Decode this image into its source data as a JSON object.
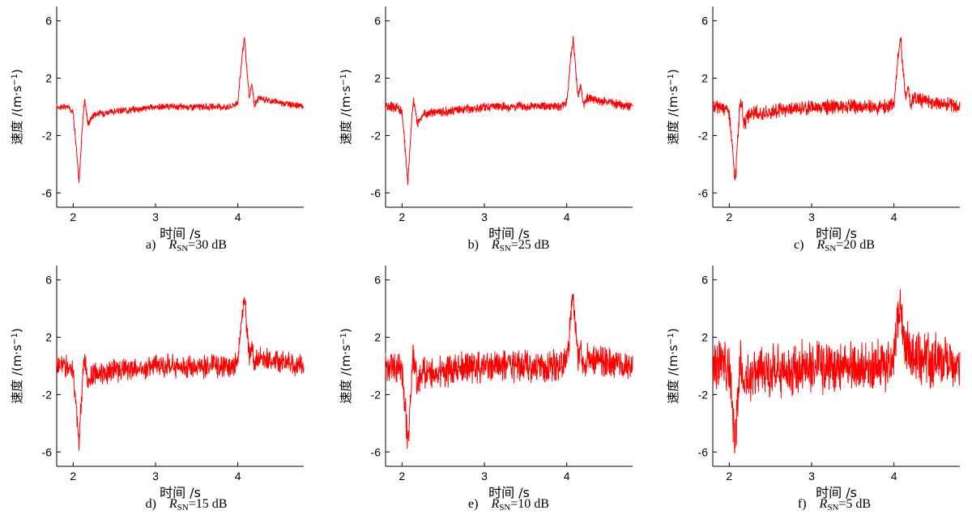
{
  "chart_data": [
    {
      "type": "line",
      "panel": "a)",
      "snr_label": "R",
      "snr_sub": "SN",
      "snr_value": "=30 dB",
      "noise": 0.25,
      "xlabel": "时间 /s",
      "ylabel": "速度 /(m·s",
      "ylabel_sup": "−1",
      "ylabel_close": ")",
      "xlim": [
        1.8,
        4.8
      ],
      "ylim": [
        -7,
        7
      ],
      "xticks": [
        2,
        3,
        4
      ],
      "yticks": [
        -6,
        -2,
        2,
        6
      ],
      "series": [
        {
          "x": [
            1.8,
            1.95,
            2.0,
            2.04,
            2.07,
            2.09,
            2.12,
            2.14,
            2.18,
            2.25,
            3.0,
            3.9,
            4.0,
            4.05,
            4.08,
            4.11,
            4.14,
            4.17,
            4.2,
            4.25,
            4.8
          ],
          "y": [
            0,
            0,
            -0.4,
            -3.0,
            -5.3,
            -3.5,
            -0.6,
            0.6,
            -1.2,
            -0.5,
            0,
            0,
            0.3,
            3.5,
            4.8,
            2.5,
            0.6,
            1.6,
            0.1,
            0.6,
            0
          ]
        }
      ]
    },
    {
      "type": "line",
      "panel": "b)",
      "snr_label": "R",
      "snr_sub": "SN",
      "snr_value": "=25 dB",
      "noise": 0.35,
      "xlabel": "时间 /s",
      "ylabel": "速度 /(m·s",
      "ylabel_sup": "−1",
      "ylabel_close": ")",
      "xlim": [
        1.8,
        4.8
      ],
      "ylim": [
        -7,
        7
      ],
      "xticks": [
        2,
        3,
        4
      ],
      "yticks": [
        -6,
        -2,
        2,
        6
      ],
      "series": [
        {
          "x": [
            1.8,
            1.95,
            2.0,
            2.04,
            2.07,
            2.09,
            2.12,
            2.14,
            2.18,
            2.25,
            3.0,
            3.9,
            4.0,
            4.05,
            4.08,
            4.11,
            4.14,
            4.17,
            4.2,
            4.25,
            4.8
          ],
          "y": [
            0,
            0,
            -0.4,
            -3.0,
            -5.3,
            -3.5,
            -0.6,
            0.6,
            -1.2,
            -0.5,
            0,
            0,
            0.3,
            3.5,
            4.8,
            2.5,
            0.6,
            1.6,
            0.1,
            0.6,
            0
          ]
        }
      ]
    },
    {
      "type": "line",
      "panel": "c)",
      "snr_label": "R",
      "snr_sub": "SN",
      "snr_value": "=20 dB",
      "noise": 0.55,
      "xlabel": "时间 /s",
      "ylabel": "速度 /(m·s",
      "ylabel_sup": "−1",
      "ylabel_close": ")",
      "xlim": [
        1.8,
        4.8
      ],
      "ylim": [
        -7,
        7
      ],
      "xticks": [
        2,
        3,
        4
      ],
      "yticks": [
        -6,
        -2,
        2,
        6
      ],
      "series": [
        {
          "x": [
            1.8,
            1.95,
            2.0,
            2.04,
            2.07,
            2.09,
            2.12,
            2.14,
            2.18,
            2.25,
            3.0,
            3.9,
            4.0,
            4.05,
            4.08,
            4.11,
            4.14,
            4.17,
            4.2,
            4.25,
            4.8
          ],
          "y": [
            0,
            0,
            -0.4,
            -3.0,
            -5.3,
            -3.5,
            -0.6,
            0.6,
            -1.2,
            -0.5,
            0,
            0,
            0.3,
            3.5,
            4.8,
            2.5,
            0.6,
            1.6,
            0.1,
            0.6,
            0
          ]
        }
      ]
    },
    {
      "type": "line",
      "panel": "d)",
      "snr_label": "R",
      "snr_sub": "SN",
      "snr_value": "=15 dB",
      "noise": 0.85,
      "xlabel": "时间 /s",
      "ylabel": "速度 /(m·s",
      "ylabel_sup": "−1",
      "ylabel_close": ")",
      "xlim": [
        1.8,
        4.8
      ],
      "ylim": [
        -7,
        7
      ],
      "xticks": [
        2,
        3,
        4
      ],
      "yticks": [
        -6,
        -2,
        2,
        6
      ],
      "series": [
        {
          "x": [
            1.8,
            1.95,
            2.0,
            2.04,
            2.07,
            2.09,
            2.12,
            2.14,
            2.18,
            2.25,
            3.0,
            3.9,
            4.0,
            4.05,
            4.08,
            4.11,
            4.14,
            4.17,
            4.2,
            4.25,
            4.8
          ],
          "y": [
            0,
            0,
            -0.4,
            -3.0,
            -5.3,
            -3.5,
            -0.6,
            0.6,
            -1.2,
            -0.5,
            0,
            0,
            0.3,
            3.5,
            4.8,
            2.5,
            0.6,
            1.6,
            0.1,
            0.6,
            0
          ]
        }
      ]
    },
    {
      "type": "line",
      "panel": "e)",
      "snr_label": "R",
      "snr_sub": "SN",
      "snr_value": "=10 dB",
      "noise": 1.2,
      "xlabel": "时间 /s",
      "ylabel": "速度 /(m·s",
      "ylabel_sup": "−1",
      "ylabel_close": ")",
      "xlim": [
        1.8,
        4.8
      ],
      "ylim": [
        -7,
        7
      ],
      "xticks": [
        2,
        3,
        4
      ],
      "yticks": [
        -6,
        -2,
        2,
        6
      ],
      "series": [
        {
          "x": [
            1.8,
            1.95,
            2.0,
            2.04,
            2.07,
            2.09,
            2.12,
            2.14,
            2.18,
            2.25,
            3.0,
            3.9,
            4.0,
            4.05,
            4.08,
            4.11,
            4.14,
            4.17,
            4.2,
            4.25,
            4.8
          ],
          "y": [
            0,
            0,
            -0.4,
            -3.0,
            -5.3,
            -3.5,
            -0.6,
            0.6,
            -1.2,
            -0.5,
            0,
            0,
            0.3,
            3.5,
            4.8,
            2.5,
            0.6,
            1.6,
            0.1,
            0.6,
            0
          ]
        }
      ]
    },
    {
      "type": "line",
      "panel": "f)",
      "snr_label": "R",
      "snr_sub": "SN",
      "snr_value": "=5 dB",
      "noise": 1.9,
      "xlabel": "时间 /s",
      "ylabel": "速度 /(m·s",
      "ylabel_sup": "−1",
      "ylabel_close": ")",
      "xlim": [
        1.8,
        4.8
      ],
      "ylim": [
        -7,
        7
      ],
      "xticks": [
        2,
        3,
        4
      ],
      "yticks": [
        -6,
        -2,
        2,
        6
      ],
      "series": [
        {
          "x": [
            1.8,
            1.95,
            2.0,
            2.04,
            2.07,
            2.09,
            2.12,
            2.14,
            2.18,
            2.25,
            3.0,
            3.9,
            4.0,
            4.05,
            4.08,
            4.11,
            4.14,
            4.17,
            4.2,
            4.25,
            4.8
          ],
          "y": [
            0,
            0,
            -0.4,
            -3.0,
            -5.3,
            -3.5,
            -0.6,
            0.6,
            -1.2,
            -0.5,
            0,
            0,
            0.3,
            3.5,
            4.8,
            2.5,
            0.6,
            1.6,
            0.1,
            0.6,
            0
          ]
        }
      ]
    }
  ],
  "line_color": "#ff0000",
  "axis_color": "#000000",
  "background": "#ffffff"
}
